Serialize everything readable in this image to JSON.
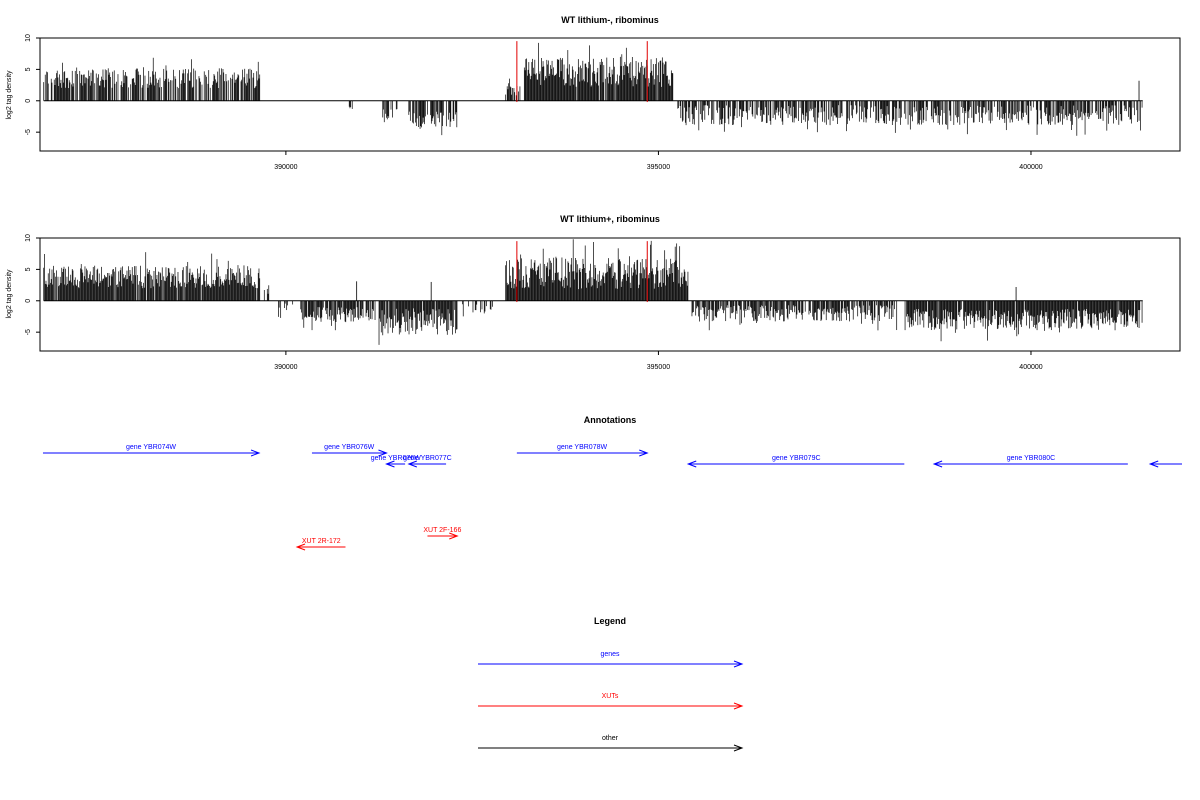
{
  "chart_data": [
    {
      "type": "bar",
      "title": "WT lithium-, ribominus",
      "ylabel": "log2 tag density",
      "xlabel": "",
      "xlim": [
        386700,
        402000
      ],
      "ylim": [
        -8,
        10
      ],
      "x_ticks": [
        390000,
        395000,
        400000
      ],
      "x_tick_labels": [
        "390000",
        "395000",
        "400000"
      ],
      "y_ticks": [
        -5,
        0,
        5,
        10
      ],
      "y_tick_labels": [
        "-5",
        "0",
        "5",
        "10"
      ],
      "grid": false,
      "marker_lines_x": [
        393100,
        394850
      ],
      "marker_color": "#e00000",
      "segments": [
        {
          "from": 386750,
          "to": 389650,
          "sign": 1,
          "mean": 3.6,
          "amp": 1.6,
          "density": 0.75
        },
        {
          "from": 390850,
          "to": 390900,
          "sign": -1,
          "mean": 1.2,
          "amp": 0.5,
          "density": 0.6
        },
        {
          "from": 391300,
          "to": 391500,
          "sign": -1,
          "mean": 2.5,
          "amp": 1.2,
          "density": 0.6
        },
        {
          "from": 391650,
          "to": 392300,
          "sign": -1,
          "mean": 3.0,
          "amp": 1.3,
          "density": 0.7
        },
        {
          "from": 392950,
          "to": 393150,
          "sign": 1,
          "mean": 2.2,
          "amp": 1.4,
          "density": 0.8
        },
        {
          "from": 393200,
          "to": 395200,
          "sign": 1,
          "mean": 4.6,
          "amp": 2.4,
          "density": 0.95
        },
        {
          "from": 395250,
          "to": 401500,
          "sign": -1,
          "mean": 2.3,
          "amp": 1.6,
          "density": 0.7
        }
      ],
      "spikes": [
        {
          "x": 401450,
          "y": 3.2
        }
      ]
    },
    {
      "type": "bar",
      "title": "WT lithium+, ribominus",
      "ylabel": "log2 tag density",
      "xlabel": "",
      "xlim": [
        386700,
        402000
      ],
      "ylim": [
        -8,
        10
      ],
      "x_ticks": [
        390000,
        395000,
        400000
      ],
      "x_tick_labels": [
        "390000",
        "395000",
        "400000"
      ],
      "y_ticks": [
        -5,
        0,
        5,
        10
      ],
      "y_tick_labels": [
        "-5",
        "0",
        "5",
        "10"
      ],
      "grid": false,
      "marker_lines_x": [
        393100,
        394850
      ],
      "marker_color": "#e00000",
      "segments": [
        {
          "from": 386750,
          "to": 389650,
          "sign": 1,
          "mean": 3.8,
          "amp": 1.8,
          "density": 0.95
        },
        {
          "from": 389700,
          "to": 389800,
          "sign": 1,
          "mean": 1.5,
          "amp": 1.0,
          "density": 0.5
        },
        {
          "from": 389900,
          "to": 390100,
          "sign": -1,
          "mean": 1.2,
          "amp": 0.8,
          "density": 0.5
        },
        {
          "from": 390200,
          "to": 391200,
          "sign": -1,
          "mean": 2.2,
          "amp": 1.2,
          "density": 0.8
        },
        {
          "from": 391250,
          "to": 392300,
          "sign": -1,
          "mean": 3.4,
          "amp": 2.2,
          "density": 0.95
        },
        {
          "from": 392350,
          "to": 392800,
          "sign": -1,
          "mean": 1.3,
          "amp": 0.8,
          "density": 0.4
        },
        {
          "from": 392950,
          "to": 395400,
          "sign": 1,
          "mean": 4.4,
          "amp": 2.6,
          "density": 1.0
        },
        {
          "from": 395450,
          "to": 398200,
          "sign": -1,
          "mean": 2.0,
          "amp": 1.3,
          "density": 0.85
        },
        {
          "from": 398300,
          "to": 401500,
          "sign": -1,
          "mean": 3.0,
          "amp": 1.7,
          "density": 0.95
        }
      ],
      "spikes": [
        {
          "x": 391950,
          "y": 3.0
        },
        {
          "x": 390950,
          "y": 3.1
        },
        {
          "x": 399800,
          "y": 2.2
        }
      ]
    }
  ],
  "annotations": {
    "title": "Annotations",
    "items": [
      {
        "label": "gene YBR074W",
        "from": 386740,
        "to": 389640,
        "dir": "right",
        "color": "#0000ff",
        "row": 0
      },
      {
        "label": "gene YBR076W",
        "from": 390350,
        "to": 391350,
        "dir": "right",
        "color": "#0000ff",
        "row": 0
      },
      {
        "label": "gene YBR076W",
        "from": 391350,
        "to": 391600,
        "dir": "left",
        "color": "#0000ff",
        "row": 1
      },
      {
        "label": "gene YBR077C",
        "from": 391650,
        "to": 392150,
        "dir": "left",
        "color": "#0000ff",
        "row": 1
      },
      {
        "label": "gene YBR078W",
        "from": 393100,
        "to": 394850,
        "dir": "right",
        "color": "#0000ff",
        "row": 0
      },
      {
        "label": "gene YBR079C",
        "from": 395400,
        "to": 398300,
        "dir": "left",
        "color": "#0000ff",
        "row": 1
      },
      {
        "label": "gene YBR080C",
        "from": 398700,
        "to": 401300,
        "dir": "left",
        "color": "#0000ff",
        "row": 1
      },
      {
        "label": "",
        "from": 401600,
        "to": 402500,
        "dir": "left",
        "color": "#0000ff",
        "row": 1
      },
      {
        "label": "XUT 2R-172",
        "from": 390150,
        "to": 390800,
        "dir": "left",
        "color": "#ff0000",
        "row": 3
      },
      {
        "label": "XUT 2F-166",
        "from": 391900,
        "to": 392300,
        "dir": "right",
        "color": "#ff0000",
        "row": 2
      }
    ]
  },
  "legend": {
    "title": "Legend",
    "items": [
      {
        "label": "genes",
        "color": "#0000ff"
      },
      {
        "label": "XUTs",
        "color": "#ff0000"
      },
      {
        "label": "other",
        "color": "#000000"
      }
    ]
  }
}
